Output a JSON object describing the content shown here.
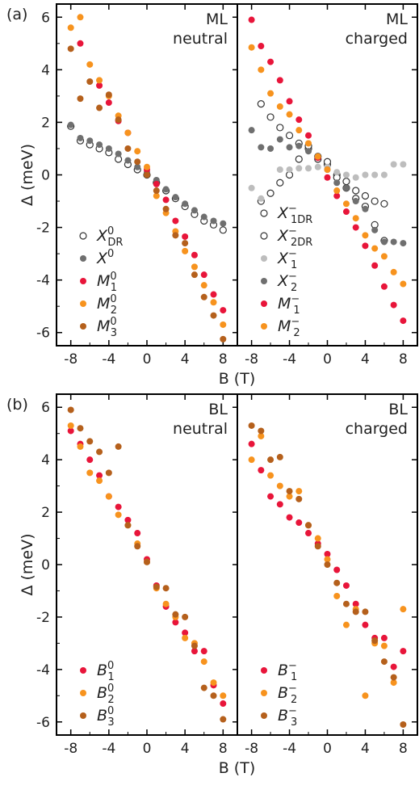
{
  "colors": {
    "red": "#e8153a",
    "orange": "#f7931e",
    "brown": "#b5601c",
    "dark_gray": "#6f6f6f",
    "light_gray": "#bdbdbd",
    "open_edge": "#333333"
  },
  "figure": {
    "panel_a": {
      "tag": "(a)",
      "ylabel": "Δ (meV)",
      "xlabel": "B (T)",
      "xticks": [
        "-8",
        "-4",
        "0",
        "4",
        "8"
      ],
      "yticks": [
        "6",
        "4",
        "2",
        "0",
        "-2",
        "-4",
        "-6"
      ],
      "subplots": [
        {
          "annotation": [
            "ML",
            "neutral"
          ],
          "legend": [
            {
              "sym": "X",
              "sup": "0",
              "sub": "DR",
              "marker": "open",
              "color": "open_edge"
            },
            {
              "sym": "X",
              "sup": "0",
              "sub": "",
              "marker": "filled",
              "color": "dark_gray"
            },
            {
              "sym": "M",
              "sup": "0",
              "sub": "1",
              "marker": "filled",
              "color": "red"
            },
            {
              "sym": "M",
              "sup": "0",
              "sub": "2",
              "marker": "filled",
              "color": "orange"
            },
            {
              "sym": "M",
              "sup": "0",
              "sub": "3",
              "marker": "filled",
              "color": "brown"
            }
          ]
        },
        {
          "annotation": [
            "ML",
            "charged"
          ],
          "legend": [
            {
              "sym": "X",
              "sup": "−",
              "sub": "1DR",
              "marker": "open",
              "color": "open_edge"
            },
            {
              "sym": "X",
              "sup": "−",
              "sub": "2DR",
              "marker": "open",
              "color": "open_edge"
            },
            {
              "sym": "X",
              "sup": "−",
              "sub": "1",
              "marker": "filled",
              "color": "light_gray"
            },
            {
              "sym": "X",
              "sup": "−",
              "sub": "2",
              "marker": "filled",
              "color": "dark_gray"
            },
            {
              "sym": "M",
              "sup": "−",
              "sub": "1",
              "marker": "filled",
              "color": "red"
            },
            {
              "sym": "M",
              "sup": "−",
              "sub": "2",
              "marker": "filled",
              "color": "orange"
            }
          ]
        }
      ]
    },
    "panel_b": {
      "tag": "(b)",
      "ylabel": "Δ (meV)",
      "xlabel": "B (T)",
      "xticks": [
        "-8",
        "-4",
        "0",
        "4",
        "8"
      ],
      "yticks": [
        "6",
        "4",
        "2",
        "0",
        "-2",
        "-4",
        "-6"
      ],
      "subplots": [
        {
          "annotation": [
            "BL",
            "neutral"
          ],
          "legend": [
            {
              "sym": "B",
              "sup": "0",
              "sub": "1",
              "marker": "filled",
              "color": "red"
            },
            {
              "sym": "B",
              "sup": "0",
              "sub": "2",
              "marker": "filled",
              "color": "orange"
            },
            {
              "sym": "B",
              "sup": "0",
              "sub": "3",
              "marker": "filled",
              "color": "brown"
            }
          ]
        },
        {
          "annotation": [
            "BL",
            "charged"
          ],
          "legend": [
            {
              "sym": "B",
              "sup": "−",
              "sub": "1",
              "marker": "filled",
              "color": "red"
            },
            {
              "sym": "B",
              "sup": "−",
              "sub": "2",
              "marker": "filled",
              "color": "orange"
            },
            {
              "sym": "B",
              "sup": "−",
              "sub": "3",
              "marker": "filled",
              "color": "brown"
            }
          ]
        }
      ]
    }
  },
  "chart_data": [
    {
      "type": "scatter",
      "panel": "(a) ML neutral",
      "xlabel": "B (T)",
      "ylabel": "Δ (meV)",
      "xlim": [
        -9.5,
        9.5
      ],
      "ylim": [
        -6.5,
        6.5
      ],
      "series": [
        {
          "name": "X0DR",
          "marker": "open",
          "color": "open_edge",
          "x": [
            -8,
            -7,
            -6,
            -5,
            -4,
            -3,
            -2,
            -1,
            0,
            1,
            2,
            3,
            4,
            5,
            6,
            7,
            8
          ],
          "y": [
            1.85,
            1.3,
            1.15,
            1.0,
            0.85,
            0.6,
            0.4,
            0.2,
            0.0,
            -0.3,
            -0.6,
            -0.9,
            -1.2,
            -1.5,
            -1.75,
            -1.9,
            -2.1
          ]
        },
        {
          "name": "X0",
          "marker": "filled",
          "color": "dark_gray",
          "x": [
            -8,
            -7,
            -6,
            -5,
            -4,
            -3,
            -2,
            -1,
            0,
            1,
            2,
            3,
            4,
            5,
            6,
            7,
            8
          ],
          "y": [
            1.9,
            1.4,
            1.3,
            1.15,
            1.0,
            0.8,
            0.55,
            0.3,
            0.1,
            -0.2,
            -0.55,
            -0.85,
            -1.1,
            -1.35,
            -1.6,
            -1.75,
            -1.85
          ]
        },
        {
          "name": "M01",
          "marker": "filled",
          "color": "red",
          "x": [
            -7,
            -5,
            -4,
            -3,
            -2,
            0,
            1,
            2,
            3,
            4,
            5,
            6,
            7,
            8
          ],
          "y": [
            5.0,
            3.4,
            2.75,
            2.05,
            1.6,
            0.2,
            -0.35,
            -0.95,
            -1.75,
            -2.35,
            -3.05,
            -3.8,
            -4.55,
            -5.15
          ]
        },
        {
          "name": "M02",
          "marker": "filled",
          "color": "orange",
          "x": [
            -8,
            -7,
            -6,
            -5,
            -4,
            -3,
            -2,
            -1,
            0,
            1,
            2,
            3,
            4,
            5,
            6,
            7,
            8
          ],
          "y": [
            5.6,
            6.0,
            4.2,
            3.6,
            3.0,
            2.25,
            1.6,
            0.9,
            0.3,
            -0.8,
            -1.45,
            -2.15,
            -2.9,
            -3.5,
            -4.2,
            -4.85,
            -5.7
          ]
        },
        {
          "name": "M03",
          "marker": "filled",
          "color": "brown",
          "x": [
            -8,
            -7,
            -6,
            -5,
            -4,
            -3,
            -2,
            -1,
            0,
            1,
            2,
            3,
            4,
            5,
            6,
            7,
            8
          ],
          "y": [
            4.8,
            2.9,
            3.55,
            2.55,
            3.05,
            2.1,
            1.0,
            0.5,
            0.0,
            -0.6,
            -1.3,
            -2.3,
            -2.6,
            -3.8,
            -4.65,
            -5.35,
            -6.25
          ]
        }
      ]
    },
    {
      "type": "scatter",
      "panel": "(a) ML charged",
      "xlabel": "B (T)",
      "ylabel": "Δ (meV)",
      "xlim": [
        -9.5,
        9.5
      ],
      "ylim": [
        -6.5,
        6.5
      ],
      "series": [
        {
          "name": "X-1DR",
          "marker": "open",
          "color": "open_edge",
          "x": [
            -7,
            -6,
            -5,
            -4,
            -3,
            -2,
            -1,
            0,
            1,
            2,
            3,
            4,
            5,
            6
          ],
          "y": [
            2.7,
            2.2,
            1.8,
            1.5,
            1.2,
            1.0,
            0.7,
            0.4,
            0.0,
            -0.25,
            -0.6,
            -0.8,
            -1.0,
            -1.1
          ]
        },
        {
          "name": "X-2DR",
          "marker": "open",
          "color": "open_edge",
          "x": [
            -7,
            -6,
            -5,
            -4,
            -3,
            -2,
            -1,
            0,
            1,
            2,
            3,
            4,
            5,
            6
          ],
          "y": [
            -1.0,
            -0.7,
            -0.3,
            0.0,
            0.6,
            1.1,
            0.6,
            0.5,
            -0.1,
            -0.5,
            -0.9,
            -1.2,
            -1.9,
            -2.5
          ]
        },
        {
          "name": "X-1",
          "marker": "filled",
          "color": "light_gray",
          "x": [
            -8,
            -7,
            -5,
            -4,
            -3,
            -2,
            -1,
            0,
            1,
            2,
            3,
            4,
            5,
            6,
            7,
            8
          ],
          "y": [
            -0.5,
            -0.9,
            0.2,
            0.2,
            0.25,
            0.25,
            0.3,
            0.3,
            0.1,
            0.0,
            -0.1,
            0.0,
            0.0,
            0.0,
            0.4,
            0.4
          ]
        },
        {
          "name": "X-2",
          "marker": "filled",
          "color": "dark_gray",
          "x": [
            -8,
            -7,
            -6,
            -5,
            -4,
            -3,
            -2,
            -1,
            0,
            1,
            2,
            3,
            4,
            5,
            6,
            7,
            8
          ],
          "y": [
            1.7,
            1.05,
            1.0,
            1.35,
            1.05,
            1.1,
            0.9,
            0.7,
            0.2,
            -0.3,
            -0.5,
            -1.0,
            -1.3,
            -2.1,
            -2.55,
            -2.55,
            -2.6
          ]
        },
        {
          "name": "M-1",
          "marker": "filled",
          "color": "red",
          "x": [
            -8,
            -7,
            -6,
            -5,
            -4,
            -3,
            -2,
            -1,
            0,
            1,
            2,
            3,
            4,
            5,
            6,
            7,
            8
          ],
          "y": [
            5.9,
            4.9,
            4.3,
            3.6,
            2.8,
            2.1,
            1.5,
            0.65,
            -0.1,
            -0.8,
            -1.4,
            -2.0,
            -2.7,
            -3.45,
            -4.25,
            -4.95,
            -5.55
          ]
        },
        {
          "name": "M-2",
          "marker": "filled",
          "color": "orange",
          "x": [
            -8,
            -7,
            -6,
            -5,
            -4,
            -3,
            -2,
            -1,
            0,
            1,
            2,
            3,
            4,
            5,
            6,
            7,
            8
          ],
          "y": [
            4.85,
            4.0,
            3.1,
            2.6,
            2.3,
            1.7,
            1.2,
            0.7,
            0.2,
            -0.6,
            -1.1,
            -1.65,
            -2.3,
            -2.8,
            -3.1,
            -3.7,
            -4.15
          ]
        }
      ]
    },
    {
      "type": "scatter",
      "panel": "(b) BL neutral",
      "xlabel": "B (T)",
      "ylabel": "Δ (meV)",
      "xlim": [
        -9.5,
        9.5
      ],
      "ylim": [
        -6.5,
        6.5
      ],
      "series": [
        {
          "name": "B01",
          "marker": "filled",
          "color": "red",
          "x": [
            -8,
            -7,
            -6,
            -5,
            -4,
            -3,
            -2,
            -1,
            0,
            1,
            2,
            3,
            4,
            5,
            6,
            7,
            8
          ],
          "y": [
            5.1,
            4.6,
            4.0,
            3.4,
            2.6,
            2.2,
            1.7,
            1.2,
            0.2,
            -0.8,
            -1.6,
            -2.2,
            -2.6,
            -3.3,
            -3.3,
            -4.6,
            -5.3
          ]
        },
        {
          "name": "B02",
          "marker": "filled",
          "color": "orange",
          "x": [
            -8,
            -7,
            -6,
            -5,
            -4,
            -3,
            -2,
            -1,
            0,
            1,
            2,
            3,
            4,
            5,
            6,
            7,
            8
          ],
          "y": [
            5.3,
            4.5,
            3.5,
            3.2,
            2.6,
            1.9,
            1.5,
            0.8,
            0.1,
            -0.9,
            -1.5,
            -2.0,
            -2.8,
            -3.0,
            -3.7,
            -4.5,
            -5.0
          ]
        },
        {
          "name": "B03",
          "marker": "filled",
          "color": "brown",
          "x": [
            -8,
            -7,
            -6,
            -5,
            -4,
            -3,
            -2,
            -1,
            0,
            1,
            2,
            3,
            4,
            5,
            6,
            7,
            8
          ],
          "y": [
            5.9,
            5.2,
            4.7,
            4.3,
            3.5,
            4.5,
            1.5,
            0.7,
            0.1,
            -0.85,
            -0.9,
            -1.9,
            -2.0,
            -3.1,
            -4.7,
            -5.0,
            -5.9
          ]
        }
      ]
    },
    {
      "type": "scatter",
      "panel": "(b) BL charged",
      "xlabel": "B (T)",
      "ylabel": "Δ (meV)",
      "xlim": [
        -9.5,
        9.5
      ],
      "ylim": [
        -6.5,
        6.5
      ],
      "series": [
        {
          "name": "B-1",
          "marker": "filled",
          "color": "red",
          "x": [
            -8,
            -7,
            -6,
            -5,
            -4,
            -3,
            -2,
            -1,
            0,
            1,
            2,
            3,
            4,
            5,
            6,
            7,
            8
          ],
          "y": [
            4.6,
            3.6,
            2.6,
            2.3,
            1.8,
            1.6,
            1.2,
            0.8,
            0.4,
            -0.2,
            -0.8,
            -1.5,
            -2.3,
            -2.8,
            -2.8,
            -3.9,
            -3.3
          ]
        },
        {
          "name": "B-2",
          "marker": "filled",
          "color": "orange",
          "x": [
            -8,
            -7,
            -6,
            -5,
            -4,
            -3,
            -2,
            -1,
            0,
            1,
            2,
            3,
            4,
            5,
            6,
            7,
            8
          ],
          "y": [
            4.0,
            4.9,
            3.4,
            3.0,
            2.6,
            2.8,
            1.5,
            1.0,
            0.2,
            -1.2,
            -2.3,
            -1.7,
            -5.0,
            -3.0,
            -3.1,
            -4.5,
            -1.7
          ]
        },
        {
          "name": "B-3",
          "marker": "filled",
          "color": "brown",
          "x": [
            -8,
            -7,
            -6,
            -5,
            -4,
            -3,
            -2,
            -1,
            0,
            1,
            2,
            3,
            4,
            5,
            6,
            7,
            8
          ],
          "y": [
            5.3,
            5.1,
            4.0,
            4.1,
            2.8,
            2.5,
            1.5,
            0.7,
            0.0,
            -0.7,
            -1.5,
            -1.8,
            -1.8,
            -2.9,
            -3.7,
            -4.3,
            -6.1
          ]
        }
      ]
    }
  ]
}
